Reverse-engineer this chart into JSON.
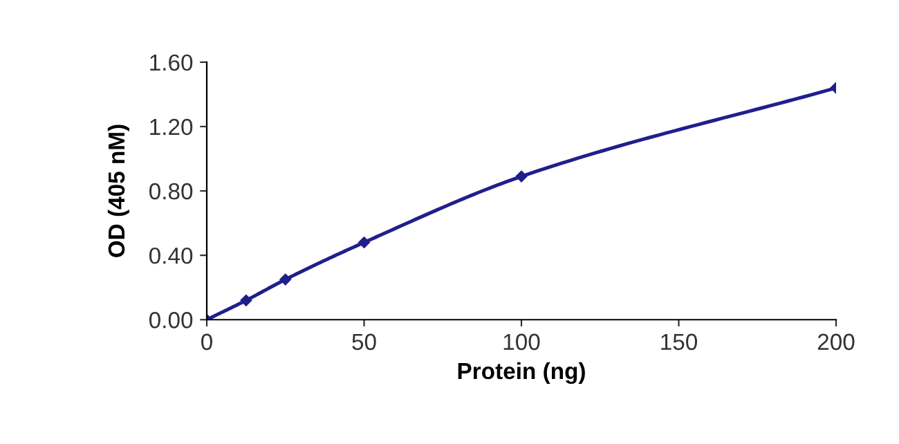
{
  "chart_data": {
    "type": "line",
    "xlabel": "Protein (ng)",
    "ylabel": "OD (405 nM)",
    "x": [
      0,
      12.5,
      25,
      50,
      100,
      200
    ],
    "series": [
      {
        "color": "#1f1f8c",
        "values": [
          0,
          0.12,
          0.25,
          0.48,
          0.89,
          1.44
        ]
      }
    ],
    "xlim": [
      0,
      200
    ],
    "xticks": [
      0,
      50,
      100,
      150,
      200
    ],
    "ylim": [
      0,
      1.6
    ],
    "yticks": [
      {
        "value": 0,
        "label": "0.00"
      },
      {
        "value": 0.4,
        "label": "0.40"
      },
      {
        "value": 0.8,
        "label": "0.80"
      },
      {
        "value": 1.2,
        "label": "1.20"
      },
      {
        "value": 1.6,
        "label": "1.60"
      }
    ],
    "marker": "diamond",
    "line_style": "solid",
    "grid": false,
    "legend": false
  }
}
